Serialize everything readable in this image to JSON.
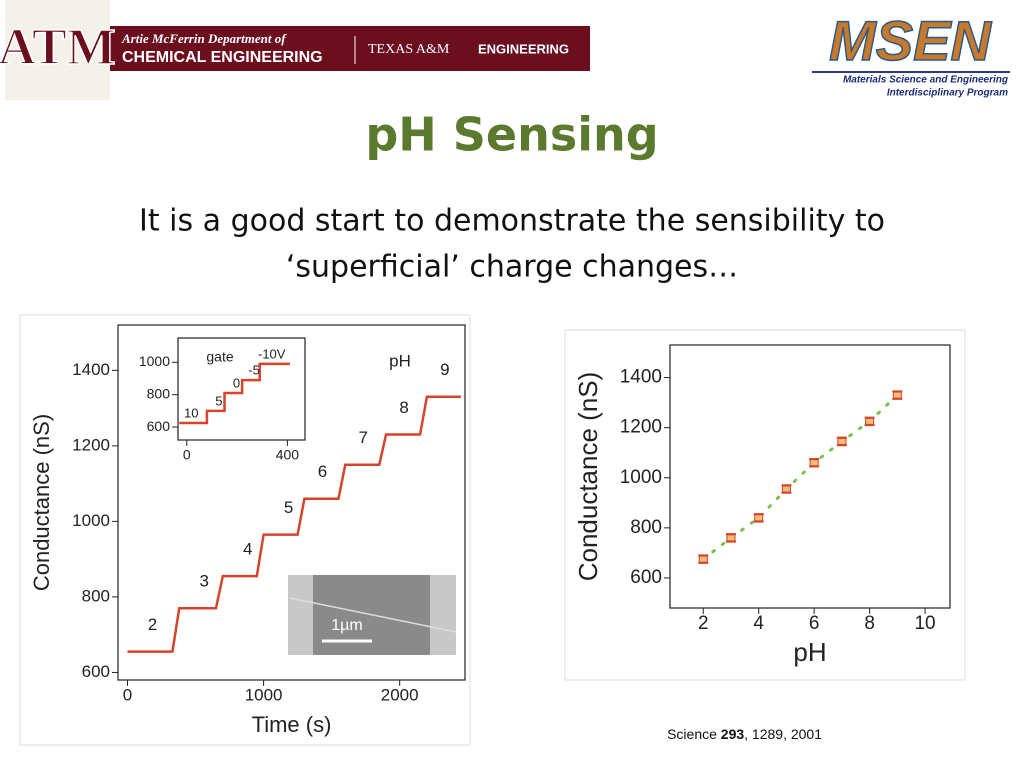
{
  "header": {
    "logo": "ATM",
    "dept_line": "Artie McFerrin Department of",
    "dept_name": "CHEMICAL ENGINEERING",
    "tamu": "TEXAS A&M",
    "tamu_eng": "ENGINEERING",
    "msen_logo": "MSEN",
    "msen_line1": "Materials Science and Engineering",
    "msen_line2": "Interdisciplinary Program"
  },
  "title": "pH Sensing",
  "subtitle": [
    "It is a good start to demonstrate the sensibility to",
    "‘superficial’ charge changes…"
  ],
  "citation": [
    "Science",
    "293",
    ", 1289, 2001"
  ],
  "chart_data": [
    {
      "type": "line",
      "x_label": "Time (s)",
      "y_label": "Conductance (nS)",
      "xlim": [
        -70,
        2480
      ],
      "ylim": [
        580,
        1520
      ],
      "xticks": [
        0,
        1000,
        2000
      ],
      "yticks": [
        600,
        800,
        1000,
        1200,
        1400
      ],
      "x": [
        0,
        330,
        380,
        650,
        700,
        950,
        1000,
        1250,
        1300,
        1550,
        1600,
        1850,
        1900,
        2150,
        2200,
        2450
      ],
      "series": [
        {
          "color": "#d8432c",
          "values": [
            655,
            655,
            770,
            770,
            855,
            855,
            965,
            965,
            1060,
            1060,
            1150,
            1150,
            1230,
            1230,
            1330,
            1330
          ]
        }
      ],
      "legend_title": "pH",
      "step_labels": [
        "2",
        "3",
        "4",
        "5",
        "6",
        "7",
        "8",
        "9"
      ],
      "scale_label": "1µm"
    },
    {
      "type": "line",
      "xlim": [
        -35,
        470
      ],
      "ylim": [
        520,
        1150
      ],
      "xticks": [
        0,
        400
      ],
      "yticks": [
        600,
        800,
        1000
      ],
      "x": [
        -30,
        80,
        80,
        150,
        150,
        220,
        220,
        290,
        290,
        410
      ],
      "series": [
        {
          "color": "#d8432c",
          "values": [
            625,
            625,
            700,
            700,
            810,
            810,
            890,
            890,
            990,
            990
          ]
        }
      ],
      "legend_title": "gate",
      "step_labels": [
        "10",
        "5",
        "0",
        "-5",
        "-10V"
      ]
    },
    {
      "type": "scatter",
      "x_label": "pH",
      "y_label": "Conductance (nS)",
      "xlim": [
        0.8,
        10.9
      ],
      "ylim": [
        480,
        1530
      ],
      "xticks": [
        2,
        4,
        6,
        8,
        10
      ],
      "yticks": [
        600,
        800,
        1000,
        1200,
        1400
      ],
      "x": [
        2,
        3,
        4,
        5,
        6,
        7,
        8,
        9
      ],
      "series": [
        {
          "color": "#d8432c",
          "values": [
            675,
            760,
            840,
            955,
            1060,
            1145,
            1225,
            1330
          ],
          "errors": [
            15,
            15,
            15,
            15,
            15,
            15,
            15,
            15
          ]
        }
      ],
      "fit_color": "#7cc34a"
    }
  ]
}
